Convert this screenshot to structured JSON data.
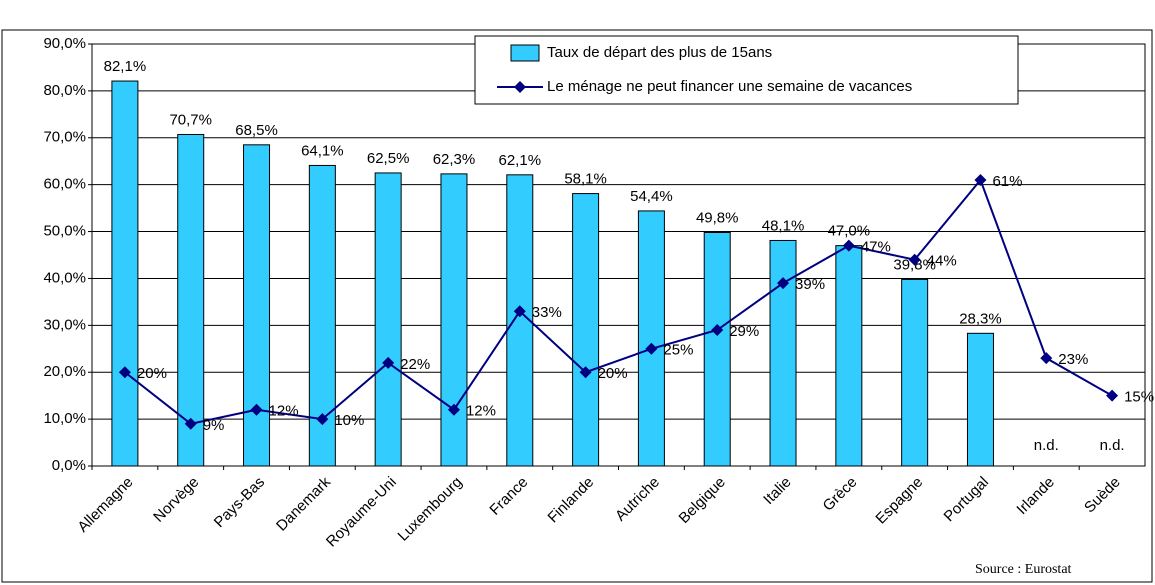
{
  "chart_data": {
    "type": "bar",
    "categories": [
      "Allemagne",
      "Norvège",
      "Pays-Bas",
      "Danemark",
      "Royaume-Uni",
      "Luxembourg",
      "France",
      "Finlande",
      "Autriche",
      "Belgique",
      "Italie",
      "Grèce",
      "Espagne",
      "Portugal",
      "Irlande",
      "Suède"
    ],
    "series": [
      {
        "name": "Taux de départ des plus de 15ans",
        "type": "bar",
        "color": "#33ccff",
        "values": [
          82.1,
          70.7,
          68.5,
          64.1,
          62.5,
          62.3,
          62.1,
          58.1,
          54.4,
          49.8,
          48.1,
          47.0,
          39.8,
          28.3,
          null,
          null
        ],
        "value_labels": [
          "82,1%",
          "70,7%",
          "68,5%",
          "64,1%",
          "62,5%",
          "62,3%",
          "62,1%",
          "58,1%",
          "54,4%",
          "49,8%",
          "48,1%",
          "47,0%",
          "39,8%",
          "28,3%",
          "n.d.",
          "n.d."
        ]
      },
      {
        "name": "Le ménage ne peut financer une semaine de vacances",
        "type": "line",
        "color": "#000080",
        "values": [
          20,
          9,
          12,
          10,
          22,
          12,
          33,
          20,
          25,
          29,
          39,
          47,
          44,
          61,
          23,
          15
        ],
        "value_labels": [
          "20%",
          "9%",
          "12%",
          "10%",
          "22%",
          "12%",
          "33%",
          "20%",
          "25%",
          "29%",
          "39%",
          "47%",
          "44%",
          "61%",
          "23%",
          "15%"
        ]
      }
    ],
    "ylim": [
      0,
      90
    ],
    "yticks": [
      {
        "value": 0,
        "label": "0,0%"
      },
      {
        "value": 10,
        "label": "10,0%"
      },
      {
        "value": 20,
        "label": "20,0%"
      },
      {
        "value": 30,
        "label": "30,0%"
      },
      {
        "value": 40,
        "label": "40,0%"
      },
      {
        "value": 50,
        "label": "50,0%"
      },
      {
        "value": 60,
        "label": "60,0%"
      },
      {
        "value": 70,
        "label": "70,0%"
      },
      {
        "value": 80,
        "label": "80,0%"
      },
      {
        "value": 90,
        "label": "90,0%"
      }
    ],
    "grid": true,
    "legend": "top-right",
    "source": "Source : Eurostat"
  }
}
